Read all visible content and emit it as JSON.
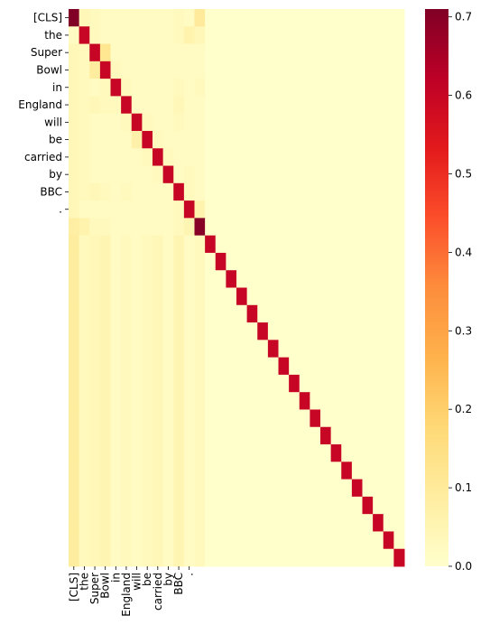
{
  "chart_data": {
    "type": "heatmap",
    "title": "",
    "xlabel": "",
    "ylabel": "",
    "colormap": "YlOrRd",
    "colormap_stops": [
      "#ffffcc",
      "#ffeda0",
      "#fed976",
      "#feb24c",
      "#fd8d3c",
      "#fc4e2a",
      "#e31a1c",
      "#bd0026",
      "#800026"
    ],
    "x_tick_labels": [
      "[CLS]",
      "the",
      "Super",
      "Bowl",
      "in",
      "England",
      "will",
      "be",
      "carried",
      "by",
      "BBC",
      "."
    ],
    "y_tick_labels": [
      "[CLS]",
      "the",
      "Super",
      "Bowl",
      "in",
      "England",
      "will",
      "be",
      "carried",
      "by",
      "BBC",
      "."
    ],
    "n_rows": 32,
    "n_cols": 32,
    "vmin": 0.0,
    "vmax": 0.71,
    "colorbar_ticks": [
      "0.0",
      "0.1",
      "0.2",
      "0.3",
      "0.4",
      "0.5",
      "0.6",
      "0.7"
    ],
    "rows": [
      [
        0.71,
        0.04,
        0.03,
        0.02,
        0.02,
        0.02,
        0.02,
        0.02,
        0.02,
        0.02,
        0.03,
        0.02,
        0.1,
        0,
        0,
        0,
        0,
        0,
        0,
        0,
        0,
        0,
        0,
        0,
        0,
        0,
        0,
        0,
        0,
        0,
        0,
        0
      ],
      [
        0.02,
        0.6,
        0.03,
        0.02,
        0.02,
        0.02,
        0.02,
        0.02,
        0.02,
        0.02,
        0.03,
        0.06,
        0.04,
        0,
        0,
        0,
        0,
        0,
        0,
        0,
        0,
        0,
        0,
        0,
        0,
        0,
        0,
        0,
        0,
        0,
        0,
        0
      ],
      [
        0.04,
        0.03,
        0.6,
        0.12,
        0.02,
        0.02,
        0.02,
        0.02,
        0.02,
        0.02,
        0.02,
        0.02,
        0.02,
        0,
        0,
        0,
        0,
        0,
        0,
        0,
        0,
        0,
        0,
        0,
        0,
        0,
        0,
        0,
        0,
        0,
        0,
        0
      ],
      [
        0.04,
        0.03,
        0.09,
        0.6,
        0.03,
        0.02,
        0.02,
        0.02,
        0.02,
        0.02,
        0.02,
        0.02,
        0.02,
        0,
        0,
        0,
        0,
        0,
        0,
        0,
        0,
        0,
        0,
        0,
        0,
        0,
        0,
        0,
        0,
        0,
        0,
        0
      ],
      [
        0.04,
        0.03,
        0.02,
        0.03,
        0.6,
        0.03,
        0.02,
        0.02,
        0.02,
        0.02,
        0.03,
        0.02,
        0.03,
        0,
        0,
        0,
        0,
        0,
        0,
        0,
        0,
        0,
        0,
        0,
        0,
        0,
        0,
        0,
        0,
        0,
        0,
        0
      ],
      [
        0.04,
        0.03,
        0.04,
        0.03,
        0.03,
        0.6,
        0.02,
        0.02,
        0.02,
        0.02,
        0.04,
        0.02,
        0.02,
        0,
        0,
        0,
        0,
        0,
        0,
        0,
        0,
        0,
        0,
        0,
        0,
        0,
        0,
        0,
        0,
        0,
        0,
        0
      ],
      [
        0.04,
        0.03,
        0.02,
        0.02,
        0.02,
        0.03,
        0.6,
        0.03,
        0.02,
        0.02,
        0.03,
        0.02,
        0.02,
        0,
        0,
        0,
        0,
        0,
        0,
        0,
        0,
        0,
        0,
        0,
        0,
        0,
        0,
        0,
        0,
        0,
        0,
        0
      ],
      [
        0.04,
        0.03,
        0.02,
        0.02,
        0.02,
        0.02,
        0.07,
        0.6,
        0.03,
        0.02,
        0.02,
        0.02,
        0.02,
        0,
        0,
        0,
        0,
        0,
        0,
        0,
        0,
        0,
        0,
        0,
        0,
        0,
        0,
        0,
        0,
        0,
        0,
        0
      ],
      [
        0.04,
        0.03,
        0.02,
        0.02,
        0.02,
        0.02,
        0.02,
        0.03,
        0.6,
        0.03,
        0.02,
        0.02,
        0.02,
        0,
        0,
        0,
        0,
        0,
        0,
        0,
        0,
        0,
        0,
        0,
        0,
        0,
        0,
        0,
        0,
        0,
        0,
        0
      ],
      [
        0.04,
        0.03,
        0.02,
        0.02,
        0.02,
        0.02,
        0.02,
        0.02,
        0.03,
        0.6,
        0.02,
        0.03,
        0.02,
        0,
        0,
        0,
        0,
        0,
        0,
        0,
        0,
        0,
        0,
        0,
        0,
        0,
        0,
        0,
        0,
        0,
        0,
        0
      ],
      [
        0.04,
        0.03,
        0.04,
        0.03,
        0.02,
        0.03,
        0.02,
        0.02,
        0.02,
        0.02,
        0.6,
        0.03,
        0.02,
        0,
        0,
        0,
        0,
        0,
        0,
        0,
        0,
        0,
        0,
        0,
        0,
        0,
        0,
        0,
        0,
        0,
        0,
        0
      ],
      [
        0.04,
        0.02,
        0.02,
        0.02,
        0.02,
        0.02,
        0.02,
        0.02,
        0.02,
        0.02,
        0.03,
        0.6,
        0.06,
        0,
        0,
        0,
        0,
        0,
        0,
        0,
        0,
        0,
        0,
        0,
        0,
        0,
        0,
        0,
        0,
        0,
        0,
        0
      ],
      [
        0.08,
        0.06,
        0.03,
        0.03,
        0.02,
        0.02,
        0.02,
        0.02,
        0.02,
        0.02,
        0.03,
        0.05,
        0.7,
        0,
        0,
        0,
        0,
        0,
        0,
        0,
        0,
        0,
        0,
        0,
        0,
        0,
        0,
        0,
        0,
        0,
        0,
        0
      ]
    ],
    "padding_rows": {
      "from_row": 13,
      "to_row": 31,
      "column_values": [
        0.09,
        0.03,
        0.04,
        0.05,
        0.02,
        0.03,
        0.02,
        0.03,
        0.04,
        0.02,
        0.05,
        0.02,
        0.03
      ],
      "diagonal_value": 0.6,
      "other_value": 0.0
    }
  }
}
